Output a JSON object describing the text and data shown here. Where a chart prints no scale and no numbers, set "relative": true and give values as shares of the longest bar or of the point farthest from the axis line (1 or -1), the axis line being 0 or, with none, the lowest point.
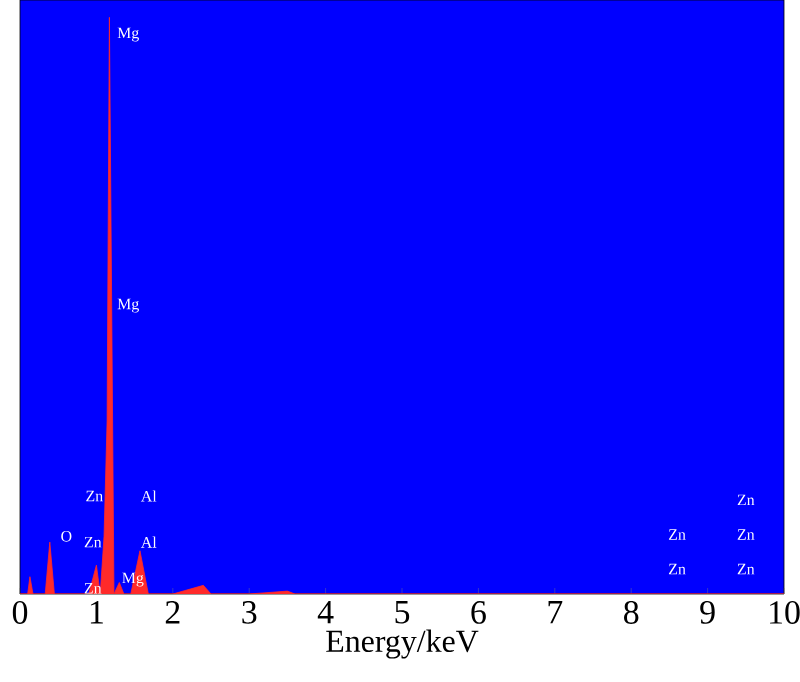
{
  "chart_data": {
    "type": "area",
    "relative": true,
    "xlabel": "Energy/keV",
    "color": "#ff2a2a",
    "xlim": [
      0,
      10
    ],
    "xticks": [
      0,
      1,
      2,
      3,
      4,
      5,
      6,
      7,
      8,
      9,
      10
    ],
    "x": [
      0,
      0.1,
      0.13,
      0.17,
      0.33,
      0.39,
      0.45,
      0.9,
      1.0,
      1.05,
      1.1,
      1.14,
      1.17,
      1.2,
      1.23,
      1.3,
      1.36,
      1.45,
      1.57,
      1.68,
      2.0,
      2.4,
      2.5,
      3.0,
      3.5,
      3.6,
      4.0,
      10
    ],
    "values": [
      0,
      0,
      0.03,
      0,
      0,
      0.09,
      0,
      0,
      0.05,
      0,
      0.1,
      0.3,
      1.0,
      0.5,
      0,
      0.02,
      0,
      0,
      0.075,
      0,
      0,
      0.015,
      0,
      0,
      0.005,
      0,
      0,
      0
    ],
    "annotations": [
      "Mg",
      "Mg",
      "Zn",
      "Al",
      "O",
      "Zn",
      "Al",
      "Zn",
      "Mg",
      "Zn",
      "Zn",
      "Zn",
      "Zn",
      "Zn"
    ]
  }
}
